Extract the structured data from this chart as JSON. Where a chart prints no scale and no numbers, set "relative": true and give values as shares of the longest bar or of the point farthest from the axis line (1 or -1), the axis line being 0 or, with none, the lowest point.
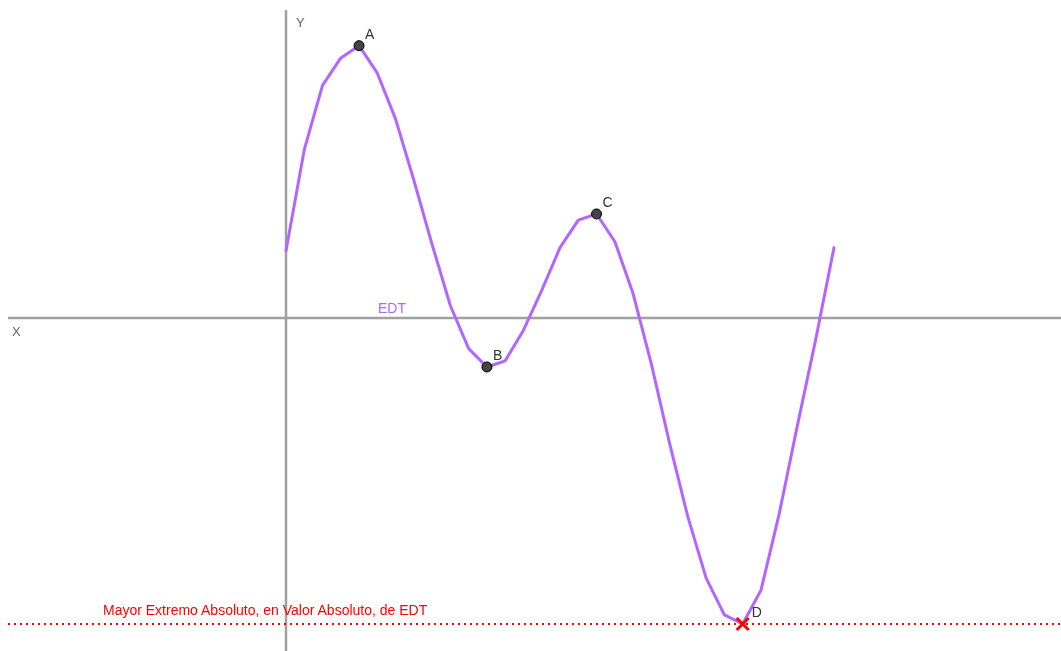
{
  "chart_data": {
    "type": "line",
    "relative": true,
    "ylabel": "Y",
    "categories": [
      null,
      null,
      null,
      null,
      null,
      null,
      null,
      null,
      null,
      null,
      null,
      null,
      null,
      null,
      null,
      null,
      null,
      null,
      null,
      null,
      null,
      null,
      null,
      null,
      null,
      null,
      null,
      null,
      null,
      null,
      null
    ],
    "series": [
      {
        "name": "EDT",
        "color": "#b266ff",
        "values": [
          0.22,
          0.55,
          0.76,
          0.85,
          0.89,
          0.8,
          0.65,
          0.45,
          0.24,
          0.04,
          -0.1,
          -0.16,
          -0.14,
          -0.04,
          0.09,
          0.23,
          0.32,
          0.34,
          0.25,
          0.08,
          -0.15,
          -0.41,
          -0.65,
          -0.85,
          -0.97,
          -1,
          -0.89,
          -0.64,
          -0.35,
          -0.07,
          0.23
        ]
      }
    ],
    "annotations": [
      "X",
      "A",
      "B",
      "C",
      "D"
    ],
    "ref_lines": [
      {
        "axis": "y",
        "value": -1,
        "label": "Mayor Extremo Absoluto, en Valor Absoluto, de EDT",
        "color": "#ff0000",
        "line_style": "dotted"
      }
    ]
  }
}
